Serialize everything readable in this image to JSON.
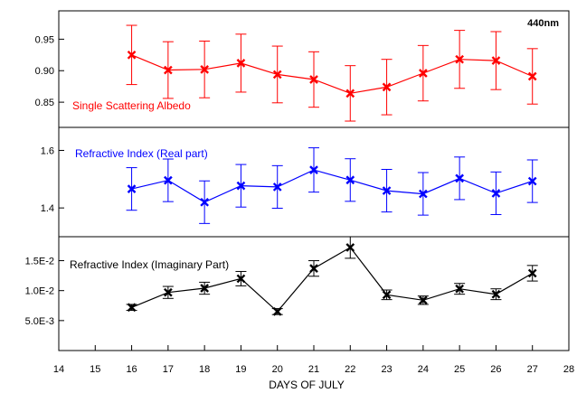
{
  "chart_data": {
    "type": "line",
    "xlabel": "DAYS OF JULY",
    "xlim": [
      14,
      28
    ],
    "xticks": [
      14,
      15,
      16,
      17,
      18,
      19,
      20,
      21,
      22,
      23,
      24,
      25,
      26,
      27,
      28
    ],
    "annotation": "440nm",
    "panels": [
      {
        "id": "ssa",
        "label": "Single Scattering Albedo",
        "color": "#ff0000",
        "ylim": [
          0.81,
          0.995
        ],
        "yticks": [
          0.85,
          0.9,
          0.95
        ],
        "ytick_labels": [
          "0.85",
          "0.90",
          "0.95"
        ],
        "series": [
          {
            "x": [
              16,
              17,
              18,
              19,
              20,
              21,
              22,
              23,
              24,
              25,
              26,
              27
            ],
            "y": [
              0.925,
              0.901,
              0.902,
              0.912,
              0.894,
              0.886,
              0.864,
              0.874,
              0.896,
              0.918,
              0.916,
              0.891
            ],
            "err": [
              0.047,
              0.045,
              0.045,
              0.046,
              0.045,
              0.044,
              0.044,
              0.044,
              0.044,
              0.046,
              0.046,
              0.044
            ]
          }
        ]
      },
      {
        "id": "rri",
        "label": "Refractive Index (Real part)",
        "color": "#0000ff",
        "ylim": [
          1.3,
          1.68
        ],
        "yticks": [
          1.4,
          1.6
        ],
        "ytick_labels": [
          "1.4",
          "1.6"
        ],
        "series": [
          {
            "x": [
              16,
              17,
              18,
              19,
              20,
              21,
              22,
              23,
              24,
              25,
              26,
              27
            ],
            "y": [
              1.466,
              1.496,
              1.42,
              1.477,
              1.473,
              1.532,
              1.497,
              1.46,
              1.449,
              1.503,
              1.451,
              1.493
            ],
            "err": [
              0.074,
              0.074,
              0.074,
              0.074,
              0.074,
              0.077,
              0.074,
              0.074,
              0.074,
              0.074,
              0.074,
              0.074
            ]
          }
        ]
      },
      {
        "id": "iri",
        "label": "Refractive Index (Imaginary Part)",
        "color": "#000000",
        "ylim": [
          0,
          0.019
        ],
        "yticks": [
          0.005,
          0.01,
          0.015
        ],
        "ytick_labels": [
          "5.0E-3",
          "1.0E-2",
          "1.5E-2"
        ],
        "series": [
          {
            "x": [
              16,
              17,
              18,
              19,
              20,
              21,
              22,
              23,
              24,
              25,
              26,
              27
            ],
            "y": [
              0.0072,
              0.0097,
              0.0104,
              0.012,
              0.0065,
              0.0137,
              0.0172,
              0.0093,
              0.0084,
              0.0103,
              0.0094,
              0.0129
            ],
            "err": [
              0.0005,
              0.001,
              0.001,
              0.0012,
              0.0005,
              0.0013,
              0.0018,
              0.0008,
              0.0007,
              0.0009,
              0.0009,
              0.0013
            ]
          }
        ]
      }
    ]
  }
}
